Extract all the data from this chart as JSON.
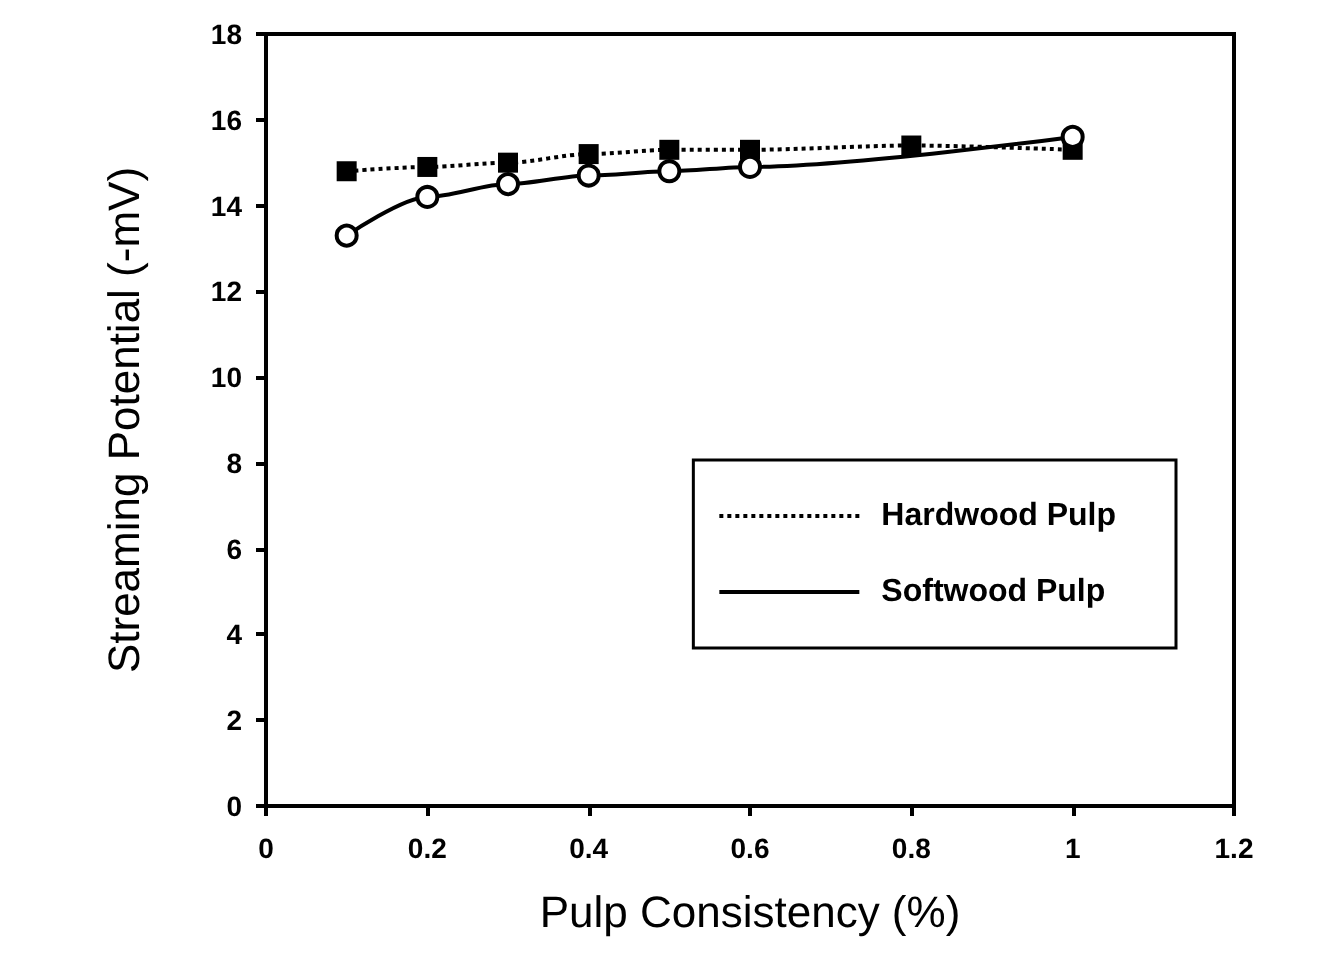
{
  "chart_data": {
    "type": "line",
    "xlabel": "Pulp Consistency (%)",
    "ylabel": "Streaming Potential (-mV)",
    "x": [
      0.1,
      0.2,
      0.3,
      0.4,
      0.5,
      0.6,
      0.8,
      1.0
    ],
    "xlim": [
      0,
      1.2
    ],
    "xticks": [
      0,
      0.2,
      0.4,
      0.6,
      0.8,
      1,
      1.2
    ],
    "ylim": [
      0,
      18
    ],
    "yticks": [
      0,
      2,
      4,
      6,
      8,
      10,
      12,
      14,
      16,
      18
    ],
    "grid": false,
    "legend": "right",
    "series": [
      {
        "name": "Hardwood Pulp",
        "color": "#000000",
        "marker": "square",
        "line_style": "dotted",
        "values": [
          14.8,
          14.9,
          15.0,
          15.2,
          15.3,
          15.3,
          15.4,
          15.3
        ]
      },
      {
        "name": "Softwood Pulp",
        "color": "#000000",
        "marker": "circle",
        "line_style": "solid",
        "values": [
          13.3,
          14.2,
          14.5,
          14.7,
          14.8,
          14.9,
          null,
          15.6
        ]
      }
    ]
  }
}
